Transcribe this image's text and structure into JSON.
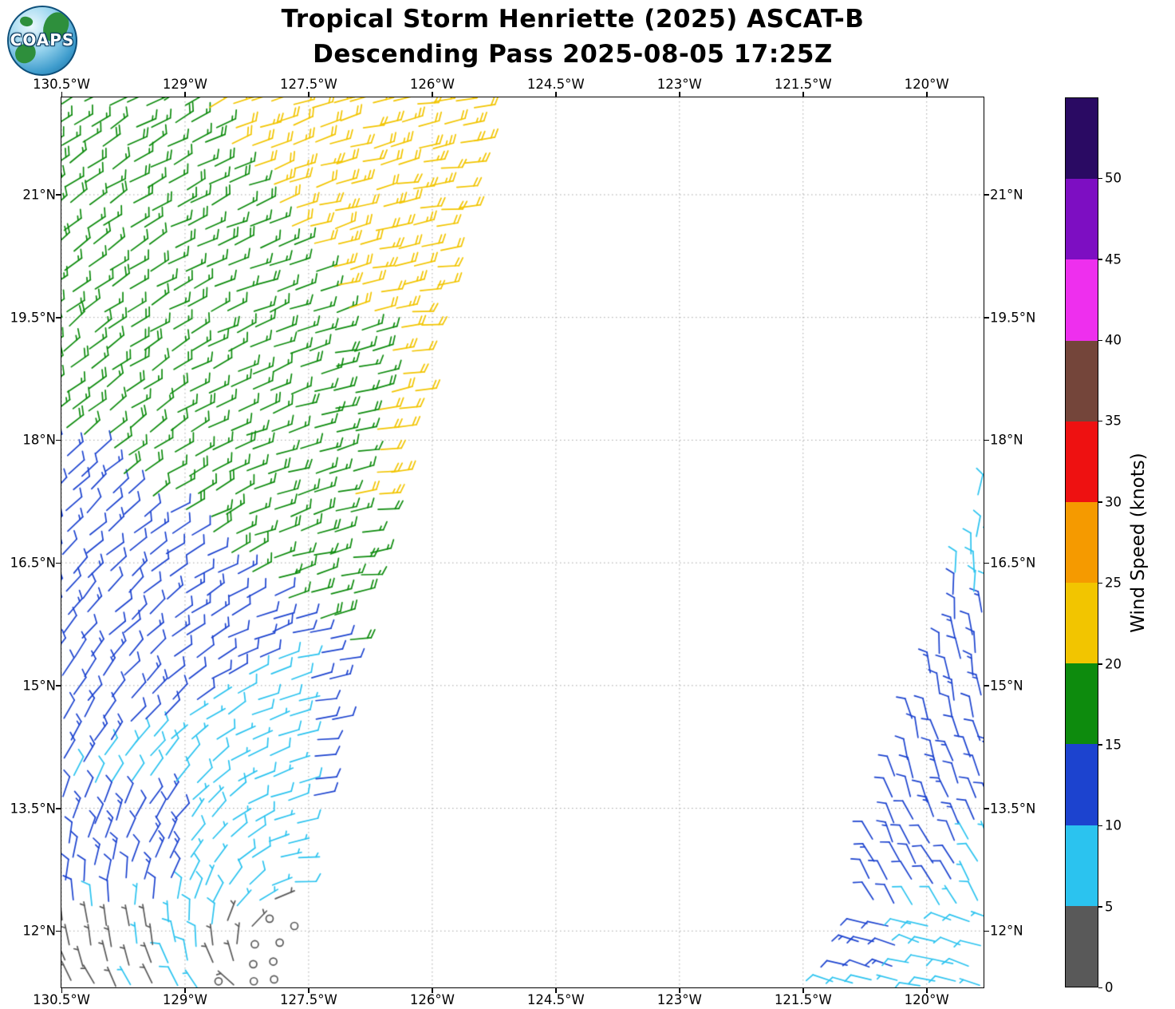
{
  "header": {
    "title_line1": "Tropical Storm Henriette (2025) ASCAT-B",
    "title_line2": "Descending Pass 2025-08-05 17:25Z"
  },
  "logo": {
    "text": "COAPS"
  },
  "chart_data": {
    "type": "wind_barb_map",
    "title": "Tropical Storm Henriette (2025) ASCAT-B",
    "subtitle": "Descending Pass 2025-08-05 17:25Z",
    "satellite": "ASCAT-B",
    "pass": "Descending",
    "datetime_utc": "2025-08-05 17:25Z",
    "grid": true,
    "lon_range": [
      -130.5,
      -119.31
    ],
    "lat_range": [
      11.31,
      22.19
    ],
    "x_ticks": {
      "values": [
        -130.5,
        -129,
        -127.5,
        -126,
        -124.5,
        -123,
        -121.5,
        -120
      ],
      "labels": [
        "130.5°W",
        "129°W",
        "127.5°W",
        "126°W",
        "124.5°W",
        "123°W",
        "121.5°W",
        "120°W"
      ]
    },
    "y_ticks": {
      "values": [
        12,
        13.5,
        15,
        16.5,
        18,
        19.5,
        21
      ],
      "labels": [
        "12°N",
        "13.5°N",
        "15°N",
        "16.5°N",
        "18°N",
        "19.5°N",
        "21°N"
      ]
    },
    "barb_spacing_deg": 0.25,
    "colorbar": {
      "label": "Wind Speed (knots)",
      "tick_values": [
        0,
        5,
        10,
        15,
        20,
        25,
        30,
        35,
        40,
        45,
        50
      ],
      "range": [
        0,
        55
      ],
      "segments": [
        {
          "from": 0,
          "to": 5,
          "color": "#595959"
        },
        {
          "from": 5,
          "to": 10,
          "color": "#2bc3ef"
        },
        {
          "from": 10,
          "to": 15,
          "color": "#1c43cf"
        },
        {
          "from": 15,
          "to": 20,
          "color": "#0d8b0d"
        },
        {
          "from": 20,
          "to": 25,
          "color": "#f2c500"
        },
        {
          "from": 25,
          "to": 30,
          "color": "#f59a00"
        },
        {
          "from": 30,
          "to": 35,
          "color": "#ee1111"
        },
        {
          "from": 35,
          "to": 40,
          "color": "#74453a"
        },
        {
          "from": 40,
          "to": 45,
          "color": "#ee2fee"
        },
        {
          "from": 45,
          "to": 50,
          "color": "#7d0ec2"
        },
        {
          "from": 50,
          "to": 55,
          "color": "#2a0a63"
        }
      ]
    },
    "swaths": [
      {
        "name": "main-swath-west",
        "polygon": [
          [
            -130.9,
            22.3
          ],
          [
            -125.25,
            22.3
          ],
          [
            -125.6,
            21.0
          ],
          [
            -125.95,
            19.5
          ],
          [
            -126.35,
            18.0
          ],
          [
            -126.75,
            16.5
          ],
          [
            -127.1,
            15.0
          ],
          [
            -127.45,
            13.5
          ],
          [
            -127.62,
            12.3
          ],
          [
            -127.72,
            11.2
          ],
          [
            -130.9,
            11.2
          ]
        ],
        "direction_model": {
          "type": "vortex",
          "center": [
            -127.9,
            11.6
          ],
          "inflow_deg": 20
        },
        "speed_rules": [
          {
            "near_center": 0.38,
            "speed": 1
          },
          {
            "near_center": 0.8,
            "speed": 3
          },
          {
            "all": [
              [
                12.15,
                0,
                -1
              ],
              [
                130.75,
                1,
                0
              ],
              [
                -129.35,
                -1,
                0
              ]
            ],
            "speed": 4
          },
          {
            "all": [
              [
                130.7,
                1,
                0
              ],
              [
                -129.1,
                -1,
                0
              ],
              [
                -12.35,
                0,
                1
              ],
              [
                13.75,
                0,
                -1
              ]
            ],
            "speed": 12
          },
          {
            "all": [
              [
                92.14,
                0.6,
                -1
              ],
              [
                -127.55,
                -1,
                0
              ]
            ],
            "speed": 8
          },
          {
            "all": [
              [
                -19.4,
                0,
                1
              ],
              [
                113.545,
                1,
                0.69
              ]
            ],
            "speed": 22
          },
          {
            "all": [
              [
                -17.2,
                0,
                1
              ],
              [
                19.6,
                0,
                -1
              ],
              [
                131.575,
                1,
                -0.265
              ]
            ],
            "speed": 22
          },
          {
            "all": [
              [
                86.2,
                0.8,
                1
              ]
            ],
            "speed": 17
          },
          {
            "speed": 12
          }
        ]
      },
      {
        "name": "edge-swath-east",
        "polygon": [
          [
            -119.2,
            11.2
          ],
          [
            -121.25,
            11.2
          ],
          [
            -120.55,
            13.5
          ],
          [
            -120.05,
            15.0
          ],
          [
            -119.7,
            16.6
          ],
          [
            -119.2,
            17.8
          ]
        ],
        "direction_model": {
          "type": "linear_lat",
          "base_deg": 320,
          "per_lat_deg": 8,
          "lat_ref": 11.3,
          "overrides": [
            {
              "lat_below": 12.2,
              "deg": 285
            }
          ]
        },
        "speed_rules": [
          {
            "all": [
              [
                -13.2,
                0,
                1
              ],
              [
                15.9,
                0,
                -1
              ]
            ],
            "speed": 12
          },
          {
            "all": [
              [
                -12.55,
                0,
                1
              ],
              [
                16.2,
                0,
                -1
              ],
              [
                -119.5,
                -1,
                0
              ]
            ],
            "speed": 12
          },
          {
            "all": [
              [
                -11.55,
                0,
                1
              ],
              [
                12.45,
                0,
                -1
              ],
              [
                121.05,
                1,
                0
              ],
              [
                -120.25,
                -1,
                0
              ]
            ],
            "speed": 12
          },
          {
            "speed": 8
          }
        ]
      }
    ]
  }
}
